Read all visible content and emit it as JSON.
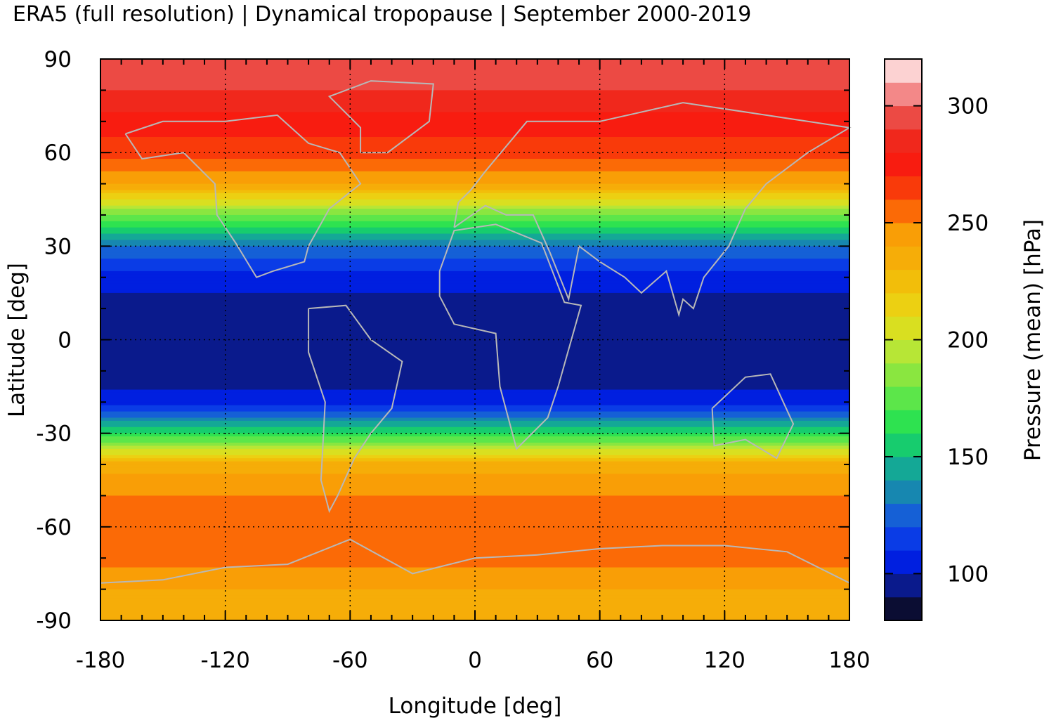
{
  "chart_data": {
    "type": "heatmap",
    "title": "ERA5 (full resolution) | Dynamical tropopause | September 2000-2019",
    "xlabel": "Longitude [deg]",
    "ylabel": "Latitude [deg]",
    "xlim": [
      -180,
      180
    ],
    "ylim": [
      -90,
      90
    ],
    "x_ticks": [
      -180,
      -120,
      -60,
      0,
      60,
      120,
      180
    ],
    "y_ticks": [
      90,
      60,
      30,
      0,
      -30,
      -60,
      -90
    ],
    "x_tick_labels": [
      "-180",
      "-120",
      "-60",
      "0",
      "60",
      "120",
      "180"
    ],
    "y_tick_labels": [
      "90",
      "60",
      "30",
      "0",
      "-30",
      "-60",
      "-90"
    ],
    "grid": true,
    "overlay": "coastlines",
    "colorbar": {
      "label": "Pressure (mean) [hPa]",
      "range": [
        80,
        320
      ],
      "ticks": [
        100,
        150,
        200,
        250,
        300
      ],
      "tick_labels": [
        "100",
        "150",
        "200",
        "250",
        "300"
      ],
      "colors": [
        "#0b0d33",
        "#0a1a8c",
        "#001fe0",
        "#0a3ce6",
        "#1560d6",
        "#1787b0",
        "#14a896",
        "#17cc6e",
        "#2ee250",
        "#5ce64a",
        "#8ae640",
        "#b7e636",
        "#d9df20",
        "#ecd012",
        "#f2be0a",
        "#f6ad08",
        "#f99e06",
        "#fb6a06",
        "#f93a0a",
        "#f81c10",
        "#f0281c",
        "#ec4a44",
        "#f38888",
        "#fcd2d2"
      ]
    },
    "zonal_mean_pressure_hpa": {
      "latitude": [
        90,
        80,
        70,
        60,
        50,
        40,
        30,
        20,
        10,
        0,
        -10,
        -20,
        -30,
        -40,
        -50,
        -60,
        -70,
        -80,
        -90
      ],
      "value": [
        290,
        290,
        275,
        265,
        240,
        180,
        130,
        105,
        95,
        92,
        93,
        105,
        160,
        235,
        250,
        255,
        255,
        240,
        235
      ]
    }
  }
}
